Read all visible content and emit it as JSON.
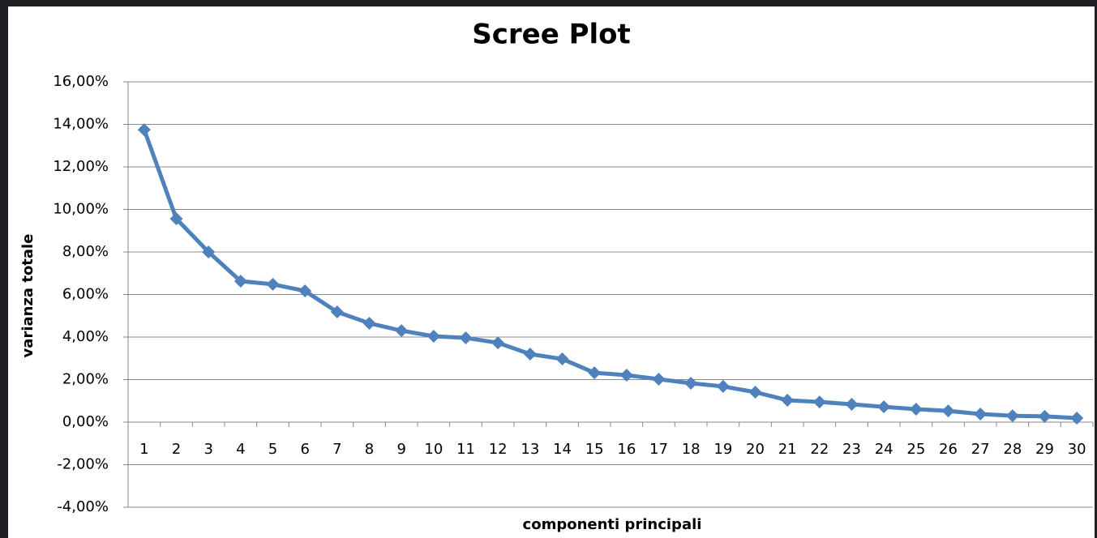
{
  "chart_data": {
    "type": "line",
    "title": "Scree Plot",
    "x_label": "componenti principali",
    "y_label": "varianza totale",
    "categories": [
      "1",
      "2",
      "3",
      "4",
      "5",
      "6",
      "7",
      "8",
      "9",
      "10",
      "11",
      "12",
      "13",
      "14",
      "15",
      "16",
      "17",
      "18",
      "19",
      "20",
      "21",
      "22",
      "23",
      "24",
      "25",
      "26",
      "27",
      "28",
      "29",
      "30"
    ],
    "series": [
      {
        "name": "varianza totale",
        "color": "#4f81bd",
        "values": [
          13.75,
          9.56,
          8.0,
          6.63,
          6.48,
          6.17,
          5.18,
          4.65,
          4.3,
          4.04,
          3.96,
          3.73,
          3.2,
          2.97,
          2.32,
          2.21,
          2.02,
          1.83,
          1.68,
          1.41,
          1.03,
          0.95,
          0.84,
          0.72,
          0.61,
          0.53,
          0.38,
          0.3,
          0.27,
          0.19
        ]
      }
    ],
    "ylim": [
      -4,
      16
    ],
    "yticks": [
      {
        "value": -4,
        "label": "-4,00%"
      },
      {
        "value": -2,
        "label": "-2,00%"
      },
      {
        "value": 0,
        "label": "0,00%"
      },
      {
        "value": 2,
        "label": "2,00%"
      },
      {
        "value": 4,
        "label": "4,00%"
      },
      {
        "value": 6,
        "label": "6,00%"
      },
      {
        "value": 8,
        "label": "8,00%"
      },
      {
        "value": 10,
        "label": "10,00%"
      },
      {
        "value": 12,
        "label": "12,00%"
      },
      {
        "value": 14,
        "label": "14,00%"
      },
      {
        "value": 16,
        "label": "16,00%"
      }
    ],
    "grid": true
  }
}
